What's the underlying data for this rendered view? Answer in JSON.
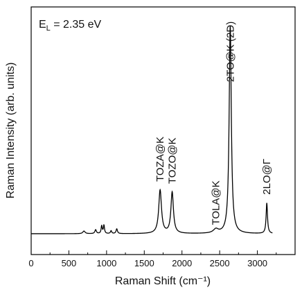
{
  "chart_data": {
    "type": "line",
    "title": "",
    "xlabel": "Raman Shift (cm⁻¹)",
    "ylabel": "Raman Intensity (arb. units)",
    "xlim": [
      0,
      3500
    ],
    "ylim": [
      0,
      1.0
    ],
    "x_ticks": [
      0,
      500,
      1000,
      1500,
      2000,
      2500,
      3000
    ],
    "y_ticks_labeled": false,
    "grid": false,
    "legend": "none",
    "line_color": "#000000",
    "energy_label": {
      "main": "E",
      "sub": "L",
      "rest": " = 2.35 eV"
    },
    "series": [
      {
        "peaks": [
          {
            "center": 700,
            "height": 0.012,
            "width": 18
          },
          {
            "center": 855,
            "height": 0.018,
            "width": 12
          },
          {
            "center": 935,
            "height": 0.035,
            "width": 9
          },
          {
            "center": 965,
            "height": 0.038,
            "width": 9
          },
          {
            "center": 1060,
            "height": 0.013,
            "width": 10
          },
          {
            "center": 1135,
            "height": 0.022,
            "width": 11
          },
          {
            "center": 1710,
            "height": 0.2,
            "width": 22
          },
          {
            "center": 1870,
            "height": 0.19,
            "width": 20
          },
          {
            "center": 2450,
            "height": 0.018,
            "width": 40
          },
          {
            "center": 2640,
            "height": 0.96,
            "width": 17
          },
          {
            "center": 3125,
            "height": 0.14,
            "width": 11
          }
        ],
        "baseline": 0.0
      }
    ],
    "annotations": [
      {
        "text": "TOZA@K",
        "x": 1710,
        "y": 0.24
      },
      {
        "text": "TOZO@K",
        "x": 1870,
        "y": 0.23
      },
      {
        "text": "TOLA@K",
        "x": 2450,
        "y": 0.04
      },
      {
        "text": "2TO@K (2D)",
        "x": 2640,
        "y": 0.7
      },
      {
        "text": "2LO@Γ",
        "x": 3125,
        "y": 0.18
      }
    ]
  }
}
